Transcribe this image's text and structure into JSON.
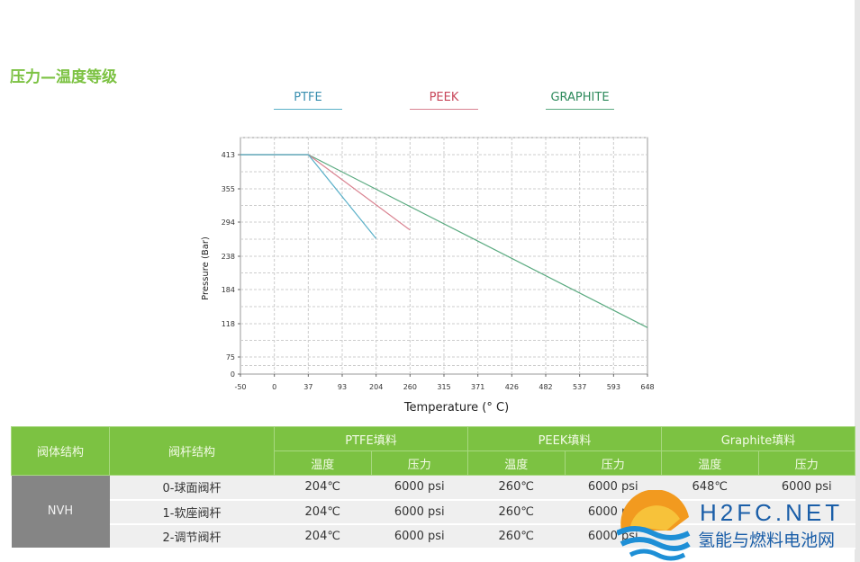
{
  "page": {
    "title": "压力—温度等级"
  },
  "legend": [
    {
      "label": "PTFE",
      "color": "#5ab0c8"
    },
    {
      "label": "PEEK",
      "color": "#d98290"
    },
    {
      "label": "GRAPHITE",
      "color": "#5aaa80"
    }
  ],
  "chart_data": {
    "type": "line",
    "xlabel": "Temperature (° C)",
    "ylabel": "Pressure (Bar)",
    "x_ticks": [
      -50,
      0,
      37,
      93,
      204,
      260,
      315,
      371,
      426,
      482,
      537,
      593,
      648
    ],
    "y_ticks": [
      0,
      75,
      118,
      184,
      238,
      294,
      355,
      413
    ],
    "xlim": [
      -50,
      648
    ],
    "ylim": [
      0,
      413
    ],
    "grid": true,
    "series": [
      {
        "name": "PTFE",
        "color": "#5ab0c8",
        "points": [
          [
            -50,
            413
          ],
          [
            37,
            413
          ],
          [
            204,
            267
          ]
        ]
      },
      {
        "name": "PEEK",
        "color": "#d98290",
        "points": [
          [
            -50,
            413
          ],
          [
            37,
            413
          ],
          [
            260,
            281
          ]
        ]
      },
      {
        "name": "GRAPHITE",
        "color": "#5aaa80",
        "points": [
          [
            -50,
            413
          ],
          [
            37,
            413
          ],
          [
            648,
            113
          ]
        ]
      }
    ]
  },
  "table": {
    "headers": {
      "body": "阀体结构",
      "stem": "阀杆结构",
      "groups": [
        "PTFE填料",
        "PEEK填料",
        "Graphite填料"
      ],
      "temp": "温度",
      "pressure": "压力"
    },
    "body_value": "NVH",
    "rows": [
      {
        "stem": "0-球面阀杆",
        "values": [
          "204℃",
          "6000 psi",
          "260℃",
          "6000 psi",
          "648℃",
          "6000 psi"
        ]
      },
      {
        "stem": "1-软座阀杆",
        "values": [
          "204℃",
          "6000 psi",
          "260℃",
          "6000 psi",
          "",
          ""
        ]
      },
      {
        "stem": "2-调节阀杆",
        "values": [
          "204℃",
          "6000 psi",
          "260℃",
          "6000 psi",
          "",
          ""
        ]
      }
    ]
  },
  "watermark": {
    "brand": "H2FC.NET",
    "tagline": "氢能与燃料电池网"
  }
}
